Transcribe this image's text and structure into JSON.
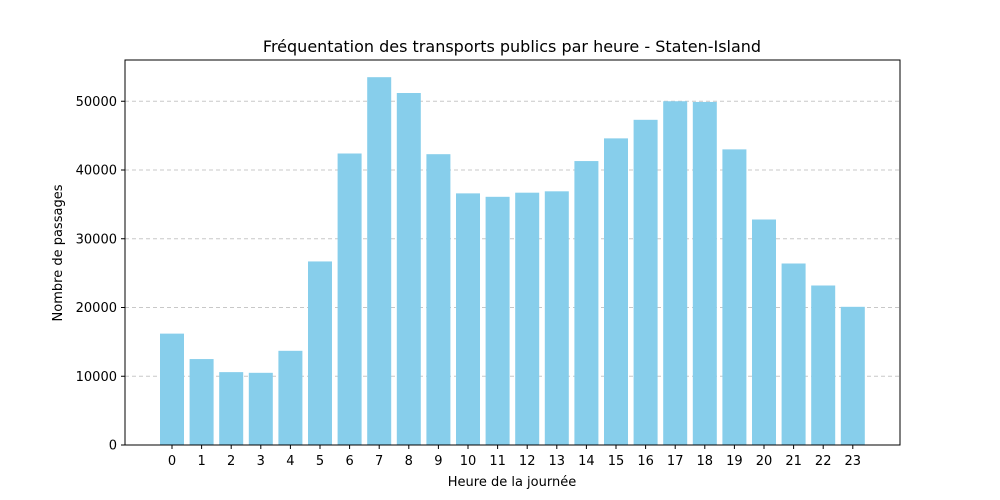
{
  "chart_data": {
    "type": "bar",
    "title": "Fréquentation des transports publics par heure - Staten-Island",
    "xlabel": "Heure de la journée",
    "ylabel": "Nombre de passages",
    "categories": [
      "0",
      "1",
      "2",
      "3",
      "4",
      "5",
      "6",
      "7",
      "8",
      "9",
      "10",
      "11",
      "12",
      "13",
      "14",
      "15",
      "16",
      "17",
      "18",
      "19",
      "20",
      "21",
      "22",
      "23"
    ],
    "values": [
      16200,
      12500,
      10600,
      10500,
      13700,
      26700,
      42400,
      53500,
      51200,
      42300,
      36600,
      36100,
      36700,
      36900,
      41300,
      44600,
      47300,
      50000,
      49900,
      43000,
      32800,
      26400,
      23200,
      20100
    ],
    "ylim": [
      0,
      56000
    ],
    "yticks": [
      0,
      10000,
      20000,
      30000,
      40000,
      50000
    ],
    "ytick_labels": [
      "0",
      "10000",
      "20000",
      "30000",
      "40000",
      "50000"
    ],
    "grid": "y-dashed",
    "bar_color": "#87ceeb"
  }
}
